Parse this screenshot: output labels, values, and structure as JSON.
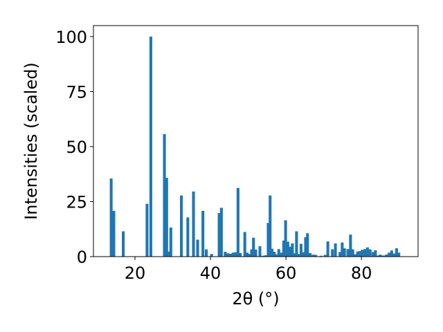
{
  "chart_data": {
    "type": "bar",
    "title": "",
    "xlabel": "2θ (°)",
    "ylabel": "Intensities (scaled)",
    "xlim": [
      9,
      95
    ],
    "ylim": [
      0,
      105
    ],
    "xticks": [
      20,
      40,
      60,
      80
    ],
    "yticks": [
      0,
      25,
      50,
      75,
      100
    ],
    "grid": false,
    "bar_color": "#1f77b4",
    "bar_width": 0.75,
    "x": [
      13.7,
      14.4,
      16.9,
      23.2,
      24.2,
      27.8,
      28.4,
      28.9,
      29.5,
      32.3,
      34.0,
      35.5,
      36.6,
      38.0,
      38.9,
      40.3,
      42.3,
      42.9,
      43.9,
      44.6,
      45.3,
      46.0,
      46.7,
      47.3,
      47.9,
      49.1,
      49.7,
      50.3,
      50.9,
      51.4,
      52.0,
      53.1,
      53.9,
      54.6,
      55.3,
      55.8,
      56.3,
      56.9,
      57.5,
      58.1,
      58.7,
      59.4,
      59.9,
      60.5,
      61.1,
      61.7,
      62.3,
      62.8,
      63.4,
      64.0,
      64.6,
      65.2,
      65.7,
      66.4,
      67.2,
      67.9,
      69.3,
      70.4,
      71.1,
      72.3,
      73.1,
      74.3,
      74.9,
      75.5,
      76.4,
      77.1,
      77.7,
      78.3,
      79.0,
      79.6,
      80.2,
      80.9,
      81.6,
      82.3,
      83.1,
      83.7,
      84.3,
      85.0,
      85.8,
      86.6,
      87.3,
      88.0,
      88.6,
      89.3,
      89.9
    ],
    "values": [
      35.5,
      20.8,
      11.5,
      24.0,
      100.0,
      55.7,
      35.8,
      2.3,
      13.2,
      27.8,
      17.8,
      29.6,
      7.7,
      20.8,
      3.3,
      1.2,
      19.8,
      22.2,
      2.2,
      1.5,
      1.3,
      1.8,
      2.0,
      31.2,
      1.6,
      11.2,
      1.8,
      1.2,
      3.3,
      8.6,
      3.2,
      4.7,
      0.4,
      0.6,
      15.3,
      27.8,
      3.6,
      2.2,
      1.0,
      3.4,
      1.8,
      7.3,
      16.5,
      6.8,
      4.5,
      6.0,
      1.5,
      11.5,
      1.2,
      5.8,
      2.0,
      8.8,
      10.6,
      1.6,
      0.9,
      0.8,
      0.4,
      0.8,
      6.9,
      3.3,
      6.0,
      2.1,
      6.4,
      3.8,
      3.4,
      10.0,
      3.3,
      1.1,
      2.3,
      2.5,
      3.1,
      3.4,
      4.2,
      3.3,
      2.1,
      2.9,
      0.5,
      0.9,
      0.5,
      0.9,
      1.8,
      2.8,
      1.4,
      3.8,
      1.8
    ]
  }
}
